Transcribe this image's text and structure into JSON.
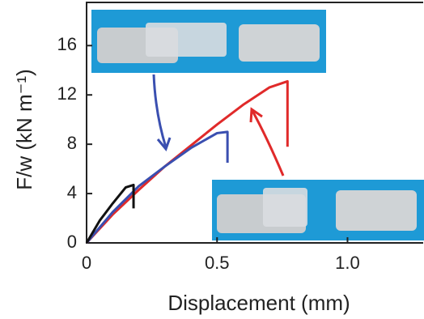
{
  "chart_data": {
    "type": "line",
    "xlabel": "Displacement (mm)",
    "ylabel": "F/w (kN m⁻¹)",
    "xlim": [
      0,
      1.29
    ],
    "ylim": [
      0,
      19.5
    ],
    "xticks": [
      0,
      0.5,
      {
        "value": 1,
        "label": "1.0"
      }
    ],
    "yticks": [
      0,
      4,
      8,
      12,
      16
    ],
    "series": [
      {
        "color": "#111111",
        "x": [
          0,
          0.05,
          0.1,
          0.15,
          0.18,
          0.18
        ],
        "values": [
          0,
          1.8,
          3.2,
          4.5,
          4.7,
          2.8
        ]
      },
      {
        "color": "#3a4fb0",
        "x": [
          0,
          0.1,
          0.2,
          0.3,
          0.4,
          0.5,
          0.54,
          0.54
        ],
        "values": [
          0,
          2.5,
          4.6,
          6.2,
          7.7,
          8.9,
          9.0,
          6.5
        ]
      },
      {
        "color": "#e02a2a",
        "x": [
          0,
          0.1,
          0.2,
          0.3,
          0.4,
          0.5,
          0.6,
          0.7,
          0.77,
          0.77
        ],
        "values": [
          0,
          2.3,
          4.3,
          6.2,
          7.9,
          9.6,
          11.2,
          12.6,
          13.1,
          7.8
        ]
      }
    ]
  }
}
